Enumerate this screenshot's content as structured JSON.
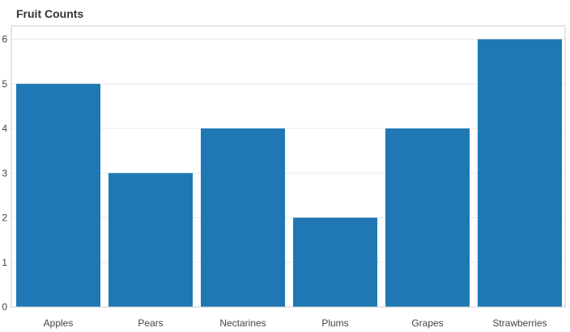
{
  "chart_data": {
    "type": "bar",
    "title": "Fruit Counts",
    "xlabel": "",
    "ylabel": "",
    "categories": [
      "Apples",
      "Pears",
      "Nectarines",
      "Plums",
      "Grapes",
      "Strawberries"
    ],
    "values": [
      5,
      3,
      4,
      2,
      4,
      6
    ],
    "ylim": [
      0,
      6.3
    ],
    "yticks": [
      "0",
      "1",
      "2",
      "3",
      "4",
      "5",
      "6"
    ],
    "grid": true,
    "legend": "none",
    "colors": {
      "bar": "#1f77b4",
      "grid": "#e8e8e8",
      "axis": "#cccccc"
    }
  }
}
